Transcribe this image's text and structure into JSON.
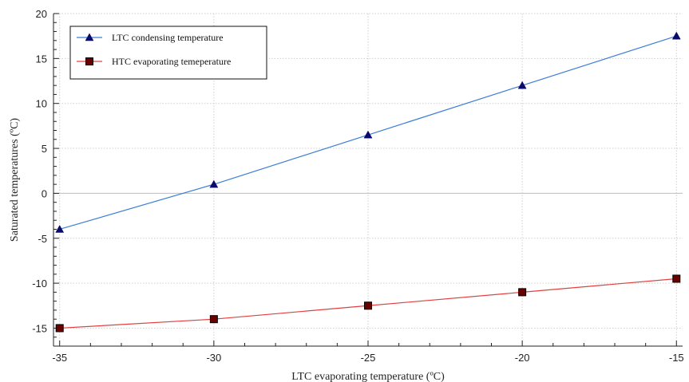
{
  "chart_data": {
    "type": "line",
    "xlabel": "LTC evaporating temperature (ºC)",
    "ylabel": "Saturated temperatures (ºC)",
    "xlim": [
      -35,
      -15
    ],
    "ylim": [
      -17,
      20
    ],
    "xticks": [
      -35,
      -30,
      -25,
      -20,
      -15
    ],
    "yticks": [
      -15,
      -10,
      -5,
      0,
      5,
      10,
      15,
      20
    ],
    "grid": true,
    "legend_position": "top-left",
    "x": [
      -35,
      -30,
      -25,
      -20,
      -15
    ],
    "series": [
      {
        "name": "LTC condensing temperature",
        "values": [
          -4,
          1,
          6.5,
          12,
          17.5
        ],
        "color": "#3b7dd8",
        "marker": "triangle",
        "marker_color": "#0b0b6b"
      },
      {
        "name": "HTC evaporating temeperature",
        "values": [
          -15,
          -14,
          -12.5,
          -11,
          -9.5
        ],
        "color": "#e04040",
        "marker": "square",
        "marker_color": "#6b0000"
      }
    ]
  }
}
